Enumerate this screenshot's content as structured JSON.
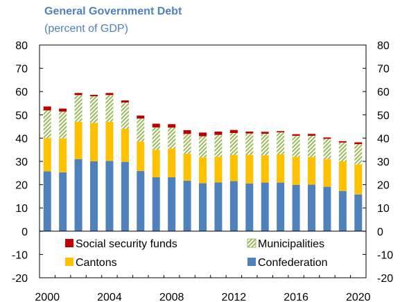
{
  "chart_data": {
    "type": "bar",
    "stacked": true,
    "title": "General Government Debt",
    "subtitle": "(percent of GDP)",
    "xlabel": "",
    "ylabel": "",
    "ylim": [
      -20,
      80
    ],
    "y_ticks": [
      "80",
      "70",
      "60",
      "50",
      "40",
      "30",
      "20",
      "10",
      "0",
      "-10",
      "-20"
    ],
    "x_tick_labels": [
      "2000",
      "2004",
      "2008",
      "2012",
      "2016",
      "2020"
    ],
    "categories": [
      "2000",
      "2001",
      "2002",
      "2003",
      "2004",
      "2005",
      "2006",
      "2007",
      "2008",
      "2009",
      "2010",
      "2011",
      "2012",
      "2013",
      "2014",
      "2015",
      "2016",
      "2017",
      "2018",
      "2019",
      "2020"
    ],
    "series": [
      {
        "name": "Confederation",
        "color": "#4f81bd",
        "values": [
          25.7,
          25.3,
          31.0,
          30.0,
          30.2,
          29.8,
          25.9,
          23.2,
          23.2,
          21.7,
          20.6,
          21.0,
          21.5,
          20.5,
          20.9,
          20.9,
          19.9,
          20.0,
          19.1,
          17.3,
          15.8
        ]
      },
      {
        "name": "Cantons",
        "color": "#ffc000",
        "values": [
          14.3,
          14.6,
          16.0,
          16.5,
          16.8,
          14.2,
          12.6,
          11.8,
          12.3,
          11.6,
          11.1,
          11.0,
          11.3,
          12.3,
          11.7,
          12.1,
          12.1,
          11.9,
          11.9,
          12.7,
          12.9
        ]
      },
      {
        "name": "Municipalities",
        "color": "#9bbb59",
        "values": [
          11.9,
          11.5,
          11.5,
          11.5,
          11.5,
          11.3,
          9.9,
          9.6,
          9.0,
          8.5,
          9.1,
          9.4,
          9.4,
          9.2,
          9.3,
          9.5,
          9.0,
          9.1,
          8.7,
          8.1,
          8.7
        ]
      },
      {
        "name": "Social security funds",
        "color": "#c00000",
        "values": [
          1.7,
          1.3,
          0.9,
          0.6,
          0.9,
          0.9,
          1.3,
          1.6,
          1.5,
          1.6,
          1.6,
          1.4,
          1.3,
          0.8,
          0.8,
          0.5,
          0.7,
          0.8,
          0.6,
          0.6,
          0.8
        ]
      }
    ],
    "legend": {
      "placement": "bottom-inside",
      "order": [
        "Social security funds",
        "Municipalities",
        "Cantons",
        "Confederation"
      ]
    },
    "grid": false
  }
}
